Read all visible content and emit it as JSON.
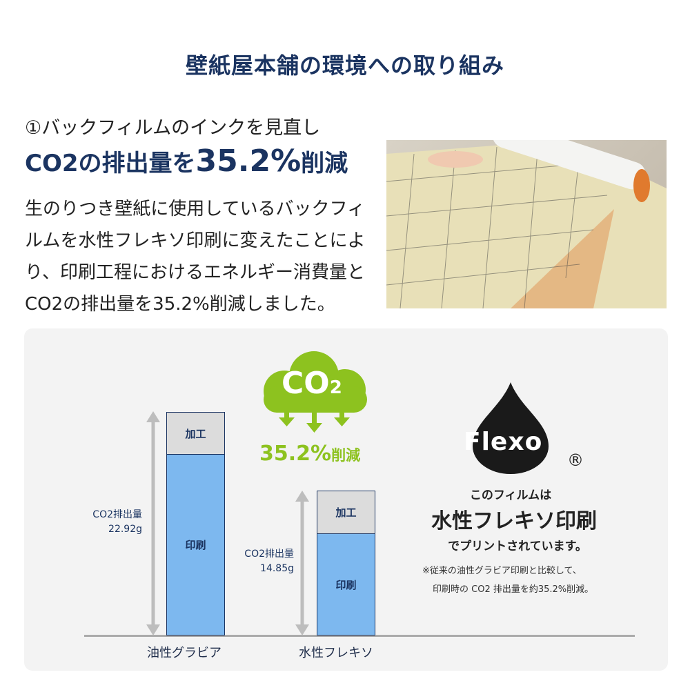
{
  "title": "壁紙屋本舗の環境への取り組み",
  "section": {
    "heading": "①バックフィルムのインクを見直し",
    "headline_pre": "CO2の排出量を",
    "headline_value": "35.2%",
    "headline_post": "削減",
    "body": "生のりつき壁紙に使用しているバックフィルムを水性フレキソ印刷に変えたことにより、印刷工程におけるエネルギー消費量とCO2の排出量を35.2%削減しました。"
  },
  "badge": {
    "cloud_text": "CO",
    "cloud_sub": "2",
    "reduction": "35.2%",
    "reduction_suffix": "削減",
    "color": "#8dc21f"
  },
  "flexo": {
    "logo_text": "Flexo",
    "registered": "®",
    "line1": "このフィルムは",
    "line2": "水性フレキソ印刷",
    "line3": "でプリントされています。",
    "note1": "※従来の油性グラビア印刷と比較して、",
    "note2": "印刷時の CO2 排出量を約35.2%削減。"
  },
  "chart_data": {
    "type": "bar",
    "stacked": true,
    "categories": [
      "油性グラビア",
      "水性フレキソ"
    ],
    "segment_labels": [
      "印刷",
      "加工"
    ],
    "totals": [
      22.92,
      14.85
    ],
    "total_labels": [
      "CO2排出量\n22.92g",
      "CO2排出量\n14.85g"
    ],
    "unit": "g",
    "colors": {
      "印刷": "#7db8ef",
      "加工": "#dcdcdc"
    }
  }
}
